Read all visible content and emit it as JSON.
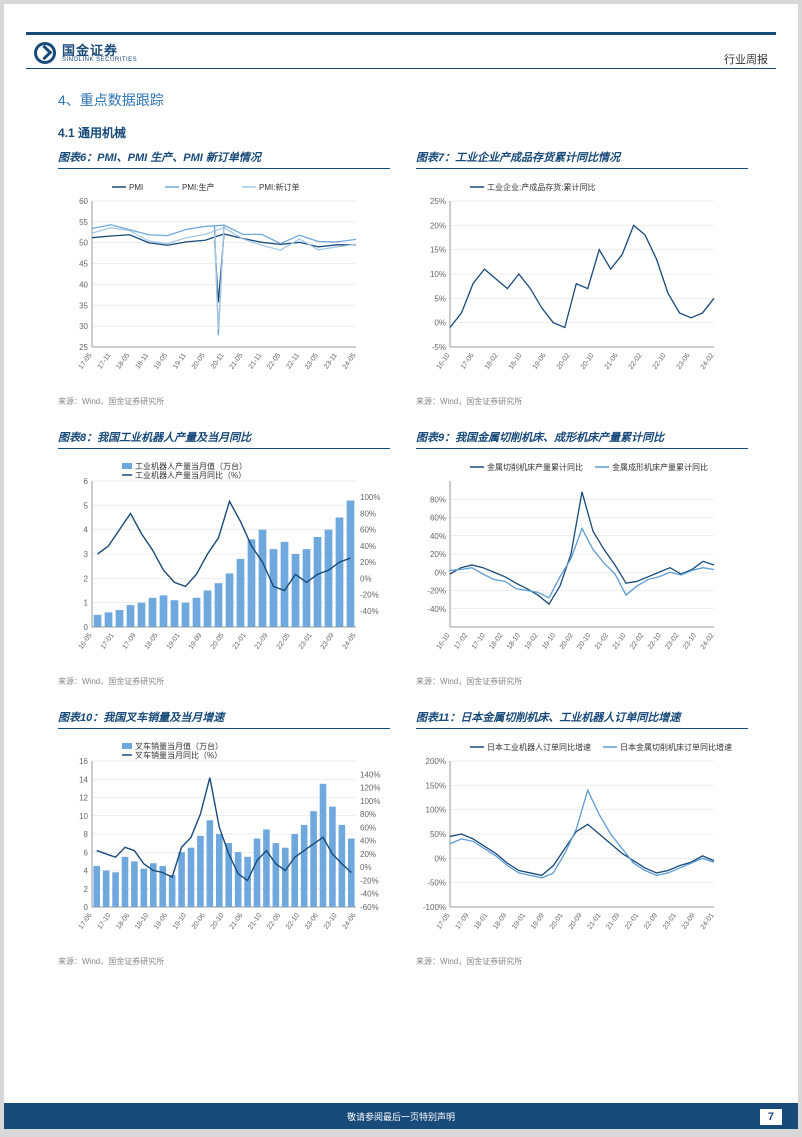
{
  "logo": {
    "cn": "国金证券",
    "en": "SINOLINK SECURITIES"
  },
  "doc_type": "行业周报",
  "section_title": "4、重点数据跟踪",
  "subsection": "4.1 通用机械",
  "source": "来源：Wind，国金证券研究所",
  "footer": "敬请参阅最后一页特别声明",
  "page_num": "7",
  "charts": [
    {
      "title": "图表6：PMI、PMI 生产、PMI 新订单情况",
      "type": "line",
      "legend": [
        "PMI",
        "PMI:生产",
        "PMI:新订单"
      ],
      "colors": [
        "#184a7a",
        "#6fa8dc",
        "#a6c8e4"
      ],
      "ylim": [
        25,
        60
      ],
      "yticks": [
        25,
        30,
        35,
        40,
        45,
        50,
        55,
        60
      ],
      "xlabels": [
        "17-05",
        "17-11",
        "18-05",
        "18-11",
        "19-05",
        "19-11",
        "20-05",
        "20-11",
        "21-05",
        "21-11",
        "22-05",
        "22-11",
        "23-05",
        "23-11",
        "24-05"
      ],
      "series": [
        [
          51.2,
          51.6,
          51.9,
          50.0,
          49.4,
          50.2,
          50.6,
          52.1,
          51.0,
          50.1,
          49.6,
          50.1,
          49.0,
          49.5,
          49.5
        ],
        [
          53.4,
          54.3,
          53.1,
          51.9,
          51.7,
          53.2,
          53.9,
          54.2,
          52.0,
          52.0,
          49.8,
          51.8,
          50.3,
          50.2,
          50.8
        ],
        [
          52.3,
          53.6,
          52.9,
          50.4,
          49.8,
          51.2,
          52.0,
          53.6,
          50.9,
          49.4,
          48.2,
          50.9,
          48.3,
          49.0,
          49.6
        ]
      ],
      "dip": {
        "x": 7,
        "vals": [
          35.7,
          27.8,
          29.3
        ]
      }
    },
    {
      "title": "图表7：工业企业产成品存货累计同比情况",
      "type": "line",
      "legend": [
        "工业企业:产成品存货:累计同比"
      ],
      "colors": [
        "#184a7a"
      ],
      "ylim": [
        -5,
        25
      ],
      "yticks": [
        -5,
        0,
        5,
        10,
        15,
        20,
        25
      ],
      "yformat": "%",
      "xlabels": [
        "16-10",
        "17-06",
        "18-02",
        "18-10",
        "19-06",
        "20-02",
        "20-10",
        "21-06",
        "22-02",
        "22-10",
        "23-06",
        "24-02"
      ],
      "series": [
        [
          -1,
          2,
          8,
          11,
          9,
          7,
          10,
          7,
          3,
          0,
          -1,
          8,
          7,
          15,
          11,
          14,
          20,
          18,
          13,
          6,
          2,
          1,
          2,
          5
        ]
      ]
    },
    {
      "title": "图表8：我国工业机器人产量及当月同比",
      "type": "bar_line",
      "legend": [
        "工业机器人产量当月值（万台）",
        "工业机器人产量当月同比（%）"
      ],
      "colors": [
        "#6fa8dc",
        "#184a7a"
      ],
      "y1lim": [
        0,
        6
      ],
      "y1ticks": [
        0,
        1,
        2,
        3,
        4,
        5,
        6
      ],
      "y2lim": [
        -60,
        120
      ],
      "y2ticks": [
        -40,
        -20,
        0,
        20,
        40,
        60,
        80,
        100
      ],
      "y2format": "%",
      "xlabels": [
        "16-05",
        "17-01",
        "17-09",
        "18-05",
        "19-01",
        "19-09",
        "20-05",
        "21-01",
        "21-09",
        "22-05",
        "23-01",
        "23-09",
        "24-05"
      ],
      "bars": [
        0.5,
        0.6,
        0.7,
        0.9,
        1.0,
        1.2,
        1.3,
        1.1,
        1.0,
        1.2,
        1.5,
        1.8,
        2.2,
        2.8,
        3.6,
        4.0,
        3.2,
        3.5,
        3.0,
        3.2,
        3.7,
        4.0,
        4.5,
        5.2
      ],
      "line": [
        30,
        40,
        60,
        80,
        55,
        35,
        10,
        -5,
        -10,
        5,
        30,
        50,
        95,
        70,
        40,
        20,
        -10,
        -15,
        5,
        -5,
        5,
        10,
        20,
        25
      ]
    },
    {
      "title": "图表9：我国金属切削机床、成形机床产量累计同比",
      "type": "line",
      "legend": [
        "金属切削机床产量累计同比",
        "金属成形机床产量累计同比"
      ],
      "colors": [
        "#184a7a",
        "#5b9bd5"
      ],
      "ylim": [
        -60,
        100
      ],
      "yticks": [
        -40,
        -20,
        0,
        20,
        40,
        60,
        80
      ],
      "yformat": "%",
      "xlabels": [
        "16-10",
        "17-02",
        "17-10",
        "18-02",
        "18-10",
        "19-02",
        "19-10",
        "20-02",
        "20-10",
        "21-02",
        "21-10",
        "22-02",
        "22-10",
        "23-02",
        "23-10",
        "24-02"
      ],
      "series": [
        [
          -2,
          5,
          8,
          5,
          0,
          -5,
          -12,
          -18,
          -25,
          -35,
          -15,
          20,
          88,
          45,
          25,
          8,
          -12,
          -10,
          -5,
          0,
          5,
          -2,
          3,
          12,
          8
        ],
        [
          2,
          3,
          5,
          -2,
          -8,
          -10,
          -18,
          -20,
          -22,
          -28,
          -5,
          15,
          48,
          25,
          10,
          -2,
          -25,
          -15,
          -8,
          -5,
          0,
          -3,
          2,
          5,
          3
        ]
      ]
    },
    {
      "title": "图表10：我国叉车销量及当月增速",
      "type": "bar_line",
      "legend": [
        "叉车销量当月值（万台）",
        "叉车销量当月同比（%）"
      ],
      "colors": [
        "#6fa8dc",
        "#184a7a"
      ],
      "y1lim": [
        0,
        16
      ],
      "y1ticks": [
        0,
        2,
        4,
        6,
        8,
        10,
        12,
        14,
        16
      ],
      "y2lim": [
        -60,
        160
      ],
      "y2ticks": [
        -60,
        -40,
        -20,
        0,
        20,
        40,
        60,
        80,
        100,
        120,
        140
      ],
      "y2format": "%",
      "xlabels": [
        "17-06",
        "17-10",
        "18-06",
        "18-10",
        "19-06",
        "19-10",
        "20-06",
        "20-10",
        "21-06",
        "21-10",
        "22-06",
        "22-10",
        "23-06",
        "23-10",
        "24-06"
      ],
      "bars": [
        4.5,
        4.0,
        3.8,
        5.5,
        5.0,
        4.2,
        4.8,
        4.5,
        3.5,
        6.0,
        6.5,
        7.8,
        9.5,
        8.0,
        7.0,
        6.0,
        5.5,
        7.5,
        8.5,
        7.0,
        6.5,
        8.0,
        9.0,
        10.5,
        13.5,
        11.0,
        9.0,
        7.5
      ],
      "line": [
        25,
        20,
        15,
        30,
        25,
        5,
        -5,
        -8,
        -15,
        30,
        45,
        80,
        135,
        60,
        20,
        -10,
        -20,
        10,
        25,
        5,
        -5,
        15,
        25,
        35,
        45,
        20,
        5,
        -8
      ]
    },
    {
      "title": "图表11：日本金属切削机床、工业机器人订单同比增速",
      "type": "line",
      "legend": [
        "日本工业机器人订单同比增速",
        "日本金属切削机床订单同比增速"
      ],
      "colors": [
        "#184a7a",
        "#5b9bd5"
      ],
      "ylim": [
        -100,
        200
      ],
      "yticks": [
        -100,
        -50,
        0,
        50,
        100,
        150,
        200
      ],
      "yformat": "%",
      "xlabels": [
        "17-05",
        "17-09",
        "18-01",
        "18-09",
        "19-01",
        "19-09",
        "20-01",
        "20-09",
        "21-01",
        "21-09",
        "22-01",
        "22-09",
        "23-01",
        "23-09",
        "24-01"
      ],
      "series": [
        [
          45,
          50,
          40,
          25,
          10,
          -10,
          -25,
          -30,
          -35,
          -15,
          20,
          55,
          70,
          50,
          30,
          10,
          -5,
          -20,
          -30,
          -25,
          -15,
          -8,
          5,
          -5
        ],
        [
          30,
          40,
          35,
          20,
          5,
          -15,
          -30,
          -35,
          -40,
          -30,
          10,
          60,
          140,
          90,
          50,
          20,
          -10,
          -25,
          -35,
          -30,
          -20,
          -10,
          0,
          -8
        ]
      ]
    }
  ]
}
